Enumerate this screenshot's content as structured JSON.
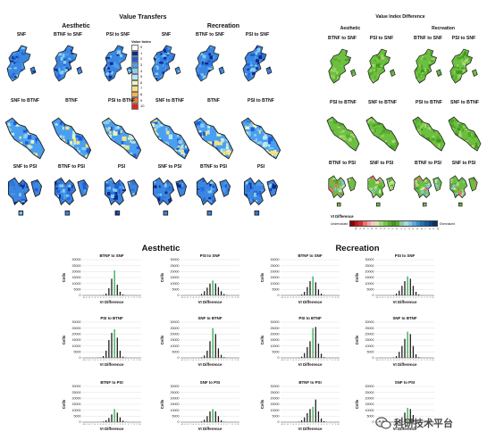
{
  "top_left": {
    "title": "Value Transfers",
    "aesthetic_label": "Aesthetic",
    "recreation_label": "Recreation",
    "rows": [
      [
        "SNF",
        "BTNF to SNF",
        "PSI to SNF",
        "SNF",
        "BTNF to SNF",
        "PSI to SNF"
      ],
      [
        "SNF to BTNF",
        "BTNF",
        "PSI to BTNF",
        "SNF to BTNF",
        "BTNF",
        "PSI to BTNF"
      ],
      [
        "SNF to PSI",
        "BTNF to PSI",
        "PSI",
        "SNF to PSI",
        "BTNF to PSI",
        "PSI"
      ]
    ],
    "legend": {
      "title": "Value Index",
      "items": [
        {
          "label": "0",
          "color": "#ffffff"
        },
        {
          "label": "1",
          "color": "#0d2a8c"
        },
        {
          "label": "2",
          "color": "#1f5fd6"
        },
        {
          "label": "3",
          "color": "#4a9ff0"
        },
        {
          "label": "4",
          "color": "#86cdf4"
        },
        {
          "label": "5",
          "color": "#bde7ea"
        },
        {
          "label": "6",
          "color": "#eef4b8"
        },
        {
          "label": "7",
          "color": "#f7e27a"
        },
        {
          "label": "8",
          "color": "#f6b44e"
        },
        {
          "label": "9",
          "color": "#ee7a33"
        },
        {
          "label": "10",
          "color": "#d6261f"
        }
      ]
    }
  },
  "top_right": {
    "title": "Value Index Difference",
    "aesthetic_label": "Aesthetic",
    "recreation_label": "Recreation",
    "rows": [
      [
        "BTNF to SNF",
        "PSI to SNF",
        "BTNF to SNF",
        "PSI to SNF"
      ],
      [
        "PSI to BTNF",
        "SNF to BTNF",
        "PSI to BTNF",
        "SNF to BTNF"
      ],
      [
        "BTNF to PSI",
        "SNF to PSI",
        "BTNF to PSI",
        "SNF to PSI"
      ]
    ],
    "scale": {
      "title": "VI Difference",
      "left_label": "Undervalued",
      "right_label": "Overvalued",
      "ticks": [
        "-10",
        "-9",
        "-8",
        "-7",
        "-6",
        "-5",
        "-4",
        "-3",
        "-2",
        "-1",
        "0",
        "1",
        "2",
        "3",
        "4",
        "5",
        "6",
        "7",
        "8",
        "9",
        "10"
      ],
      "colors": [
        "#8b0000",
        "#b71c1c",
        "#d32f2f",
        "#e57373",
        "#f2a1a1",
        "#f7c6c6",
        "#cfe8a6",
        "#a8d677",
        "#7dc24a",
        "#5aad2e",
        "#3f9a1c",
        "#5aa83a",
        "#8cc7a0",
        "#aad6e3",
        "#86c4e0",
        "#5aa9d6",
        "#3b8cc6",
        "#2370b0",
        "#175a98",
        "#0d4580",
        "#073066"
      ]
    }
  },
  "bottom": {
    "aesthetic_label": "Aesthetic",
    "recreation_label": "Recreation",
    "xlabel": "VI Difference",
    "ylabel": "Cells",
    "y_ticks": [
      "0",
      "5000",
      "10000",
      "15000",
      "20000",
      "25000",
      "30000"
    ],
    "panels": [
      {
        "title": "BTNF to SNF"
      },
      {
        "title": "PSI to SNF"
      },
      {
        "title": "BTNF to SNF"
      },
      {
        "title": "PSI to SNF"
      },
      {
        "title": "PSI to BTNF"
      },
      {
        "title": "SNF to BTNF"
      },
      {
        "title": "PSI to BTNF"
      },
      {
        "title": "SNF to BTNF"
      },
      {
        "title": "BTNF to PSI"
      },
      {
        "title": "SNF to PSI"
      },
      {
        "title": "BTNF to PSI"
      },
      {
        "title": "SNF to PSI"
      }
    ]
  },
  "chart_data": [
    {
      "type": "bar",
      "title": "BTNF to SNF",
      "xlabel": "VI Difference",
      "ylabel": "Cells",
      "ylim": [
        0,
        30000
      ],
      "x": [
        -10,
        -9,
        -8,
        -7,
        -6,
        -5,
        -4,
        -3,
        -2,
        -1,
        0,
        1,
        2,
        3,
        4,
        5,
        6,
        7,
        8,
        9,
        10
      ],
      "values": [
        0,
        0,
        0,
        0,
        0,
        0,
        100,
        400,
        1500,
        6000,
        14000,
        21000,
        9000,
        3000,
        800,
        200,
        50,
        0,
        0,
        0,
        0
      ],
      "highlight": 0
    },
    {
      "type": "bar",
      "title": "PSI to SNF",
      "xlabel": "VI Difference",
      "ylabel": "Cells",
      "ylim": [
        0,
        30000
      ],
      "x": [
        -10,
        -9,
        -8,
        -7,
        -6,
        -5,
        -4,
        -3,
        -2,
        -1,
        0,
        1,
        2,
        3,
        4,
        5,
        6,
        7,
        8,
        9,
        10
      ],
      "values": [
        0,
        0,
        0,
        0,
        0,
        0,
        200,
        1200,
        3500,
        6500,
        10000,
        12500,
        10000,
        7000,
        3500,
        1200,
        300,
        0,
        0,
        0,
        0
      ],
      "highlight": 0
    },
    {
      "type": "bar",
      "title": "BTNF to SNF",
      "xlabel": "VI Difference",
      "ylabel": "Cells",
      "ylim": [
        0,
        30000
      ],
      "x": [
        -10,
        -9,
        -8,
        -7,
        -6,
        -5,
        -4,
        -3,
        -2,
        -1,
        0,
        1,
        2,
        3,
        4,
        5,
        6,
        7,
        8,
        9,
        10
      ],
      "values": [
        0,
        0,
        0,
        0,
        0,
        0,
        200,
        800,
        3000,
        7000,
        12000,
        16000,
        11000,
        5000,
        1500,
        300,
        0,
        0,
        0,
        0,
        0
      ],
      "highlight": 0
    },
    {
      "type": "bar",
      "title": "PSI to SNF",
      "xlabel": "VI Difference",
      "ylabel": "Cells",
      "ylim": [
        0,
        30000
      ],
      "x": [
        -10,
        -9,
        -8,
        -7,
        -6,
        -5,
        -4,
        -3,
        -2,
        -1,
        0,
        1,
        2,
        3,
        4,
        5,
        6,
        7,
        8,
        9,
        10
      ],
      "values": [
        0,
        0,
        0,
        0,
        0,
        0,
        200,
        1500,
        4000,
        8000,
        12000,
        16000,
        14000,
        8000,
        3000,
        800,
        100,
        0,
        0,
        0,
        0
      ],
      "highlight": 0
    },
    {
      "type": "bar",
      "title": "PSI to BTNF",
      "xlabel": "VI Difference",
      "ylabel": "Cells",
      "ylim": [
        0,
        30000
      ],
      "x": [
        -10,
        -9,
        -8,
        -7,
        -6,
        -5,
        -4,
        -3,
        -2,
        -1,
        0,
        1,
        2,
        3,
        4,
        5,
        6,
        7,
        8,
        9,
        10
      ],
      "values": [
        0,
        0,
        0,
        0,
        0,
        100,
        300,
        1500,
        6000,
        15000,
        21000,
        24000,
        17000,
        6000,
        1000,
        200,
        0,
        0,
        0,
        0,
        0
      ],
      "highlight": 0
    },
    {
      "type": "bar",
      "title": "SNF to BTNF",
      "xlabel": "VI Difference",
      "ylabel": "Cells",
      "ylim": [
        0,
        30000
      ],
      "x": [
        -10,
        -9,
        -8,
        -7,
        -6,
        -5,
        -4,
        -3,
        -2,
        -1,
        0,
        1,
        2,
        3,
        4,
        5,
        6,
        7,
        8,
        9,
        10
      ],
      "values": [
        0,
        0,
        0,
        0,
        0,
        0,
        100,
        500,
        2000,
        6000,
        14000,
        25000,
        20000,
        8000,
        2500,
        600,
        100,
        0,
        0,
        0,
        0
      ],
      "highlight": 0
    },
    {
      "type": "bar",
      "title": "PSI to BTNF",
      "xlabel": "VI Difference",
      "ylabel": "Cells",
      "ylim": [
        0,
        30000
      ],
      "x": [
        -10,
        -9,
        -8,
        -7,
        -6,
        -5,
        -4,
        -3,
        -2,
        -1,
        0,
        1,
        2,
        3,
        4,
        5,
        6,
        7,
        8,
        9,
        10
      ],
      "values": [
        0,
        0,
        0,
        0,
        0,
        0,
        200,
        1000,
        4000,
        9000,
        14000,
        25000,
        26000,
        12000,
        3500,
        600,
        0,
        0,
        0,
        0,
        0
      ],
      "highlight": 0
    },
    {
      "type": "bar",
      "title": "SNF to BTNF",
      "xlabel": "VI Difference",
      "ylabel": "Cells",
      "ylim": [
        0,
        30000
      ],
      "x": [
        -10,
        -9,
        -8,
        -7,
        -6,
        -5,
        -4,
        -3,
        -2,
        -1,
        0,
        1,
        2,
        3,
        4,
        5,
        6,
        7,
        8,
        9,
        10
      ],
      "values": [
        0,
        0,
        0,
        0,
        0,
        0,
        300,
        1500,
        5000,
        10000,
        16000,
        22000,
        20000,
        10000,
        3000,
        600,
        100,
        0,
        0,
        0,
        0
      ],
      "highlight": 0
    },
    {
      "type": "bar",
      "title": "BTNF to PSI",
      "xlabel": "VI Difference",
      "ylabel": "Cells",
      "ylim": [
        0,
        30000
      ],
      "x": [
        -10,
        -9,
        -8,
        -7,
        -6,
        -5,
        -4,
        -3,
        -2,
        -1,
        0,
        1,
        2,
        3,
        4,
        5,
        6,
        7,
        8,
        9,
        10
      ],
      "values": [
        0,
        0,
        0,
        0,
        0,
        0,
        100,
        500,
        1500,
        3500,
        6500,
        11000,
        8000,
        4000,
        1200,
        200,
        0,
        0,
        0,
        0,
        0
      ],
      "highlight": 0
    },
    {
      "type": "bar",
      "title": "SNF to PSI",
      "xlabel": "VI Difference",
      "ylabel": "Cells",
      "ylim": [
        0,
        30000
      ],
      "x": [
        -10,
        -9,
        -8,
        -7,
        -6,
        -5,
        -4,
        -3,
        -2,
        -1,
        0,
        1,
        2,
        3,
        4,
        5,
        6,
        7,
        8,
        9,
        10
      ],
      "values": [
        0,
        0,
        0,
        0,
        0,
        0,
        100,
        600,
        2000,
        5000,
        9000,
        11000,
        9000,
        5000,
        1500,
        300,
        0,
        0,
        0,
        0,
        0
      ],
      "highlight": 0
    },
    {
      "type": "bar",
      "title": "BTNF to PSI",
      "xlabel": "VI Difference",
      "ylabel": "Cells",
      "ylim": [
        0,
        30000
      ],
      "x": [
        -10,
        -9,
        -8,
        -7,
        -6,
        -5,
        -4,
        -3,
        -2,
        -1,
        0,
        1,
        2,
        3,
        4,
        5,
        6,
        7,
        8,
        9,
        10
      ],
      "values": [
        0,
        0,
        0,
        0,
        0,
        100,
        400,
        1500,
        4000,
        7500,
        11000,
        13000,
        19000,
        9000,
        3000,
        800,
        100,
        0,
        0,
        0,
        0
      ],
      "highlight": 0
    },
    {
      "type": "bar",
      "title": "SNF to PSI",
      "xlabel": "VI Difference",
      "ylabel": "Cells",
      "ylim": [
        0,
        30000
      ],
      "x": [
        -10,
        -9,
        -8,
        -7,
        -6,
        -5,
        -4,
        -3,
        -2,
        -1,
        0,
        1,
        2,
        3,
        4,
        5,
        6,
        7,
        8,
        9,
        10
      ],
      "values": [
        0,
        0,
        0,
        0,
        0,
        0,
        100,
        500,
        1500,
        4000,
        8000,
        12000,
        11000,
        6000,
        2000,
        400,
        0,
        0,
        0,
        0,
        0
      ],
      "highlight": 0
    }
  ],
  "watermark": {
    "text": "科研技术平台",
    "icon": "wechat-icon"
  }
}
